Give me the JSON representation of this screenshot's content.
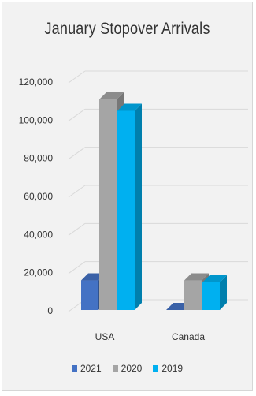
{
  "chart_data": {
    "type": "bar",
    "style": "3d-clustered-column",
    "title": "January Stopover Arrivals",
    "xlabel": "",
    "ylabel": "",
    "categories": [
      "USA",
      "Canada"
    ],
    "series": [
      {
        "name": "2021",
        "color": "#4472c4",
        "values": [
          15500,
          0
        ]
      },
      {
        "name": "2020",
        "color": "#a5a5a5",
        "values": [
          110500,
          15500
        ]
      },
      {
        "name": "2019",
        "color": "#00b0f0",
        "values": [
          104500,
          14500
        ]
      }
    ],
    "yticks": [
      "0",
      "20,000",
      "40,000",
      "60,000",
      "80,000",
      "100,000",
      "120,000"
    ],
    "ylim": [
      0,
      120000
    ],
    "grid": true,
    "legend_position": "bottom"
  }
}
